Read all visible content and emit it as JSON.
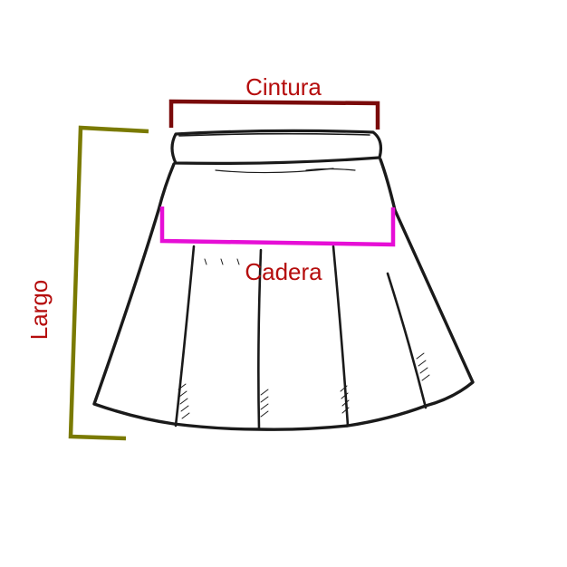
{
  "labels": {
    "waist": "Cintura",
    "hip": "Cadera",
    "length": "Largo"
  },
  "colors": {
    "label_text": "#b50d0d",
    "waist_line": "#7a0a0a",
    "hip_line": "#e60ed6",
    "length_line": "#7a7a00",
    "sketch": "#1a1a1a"
  }
}
